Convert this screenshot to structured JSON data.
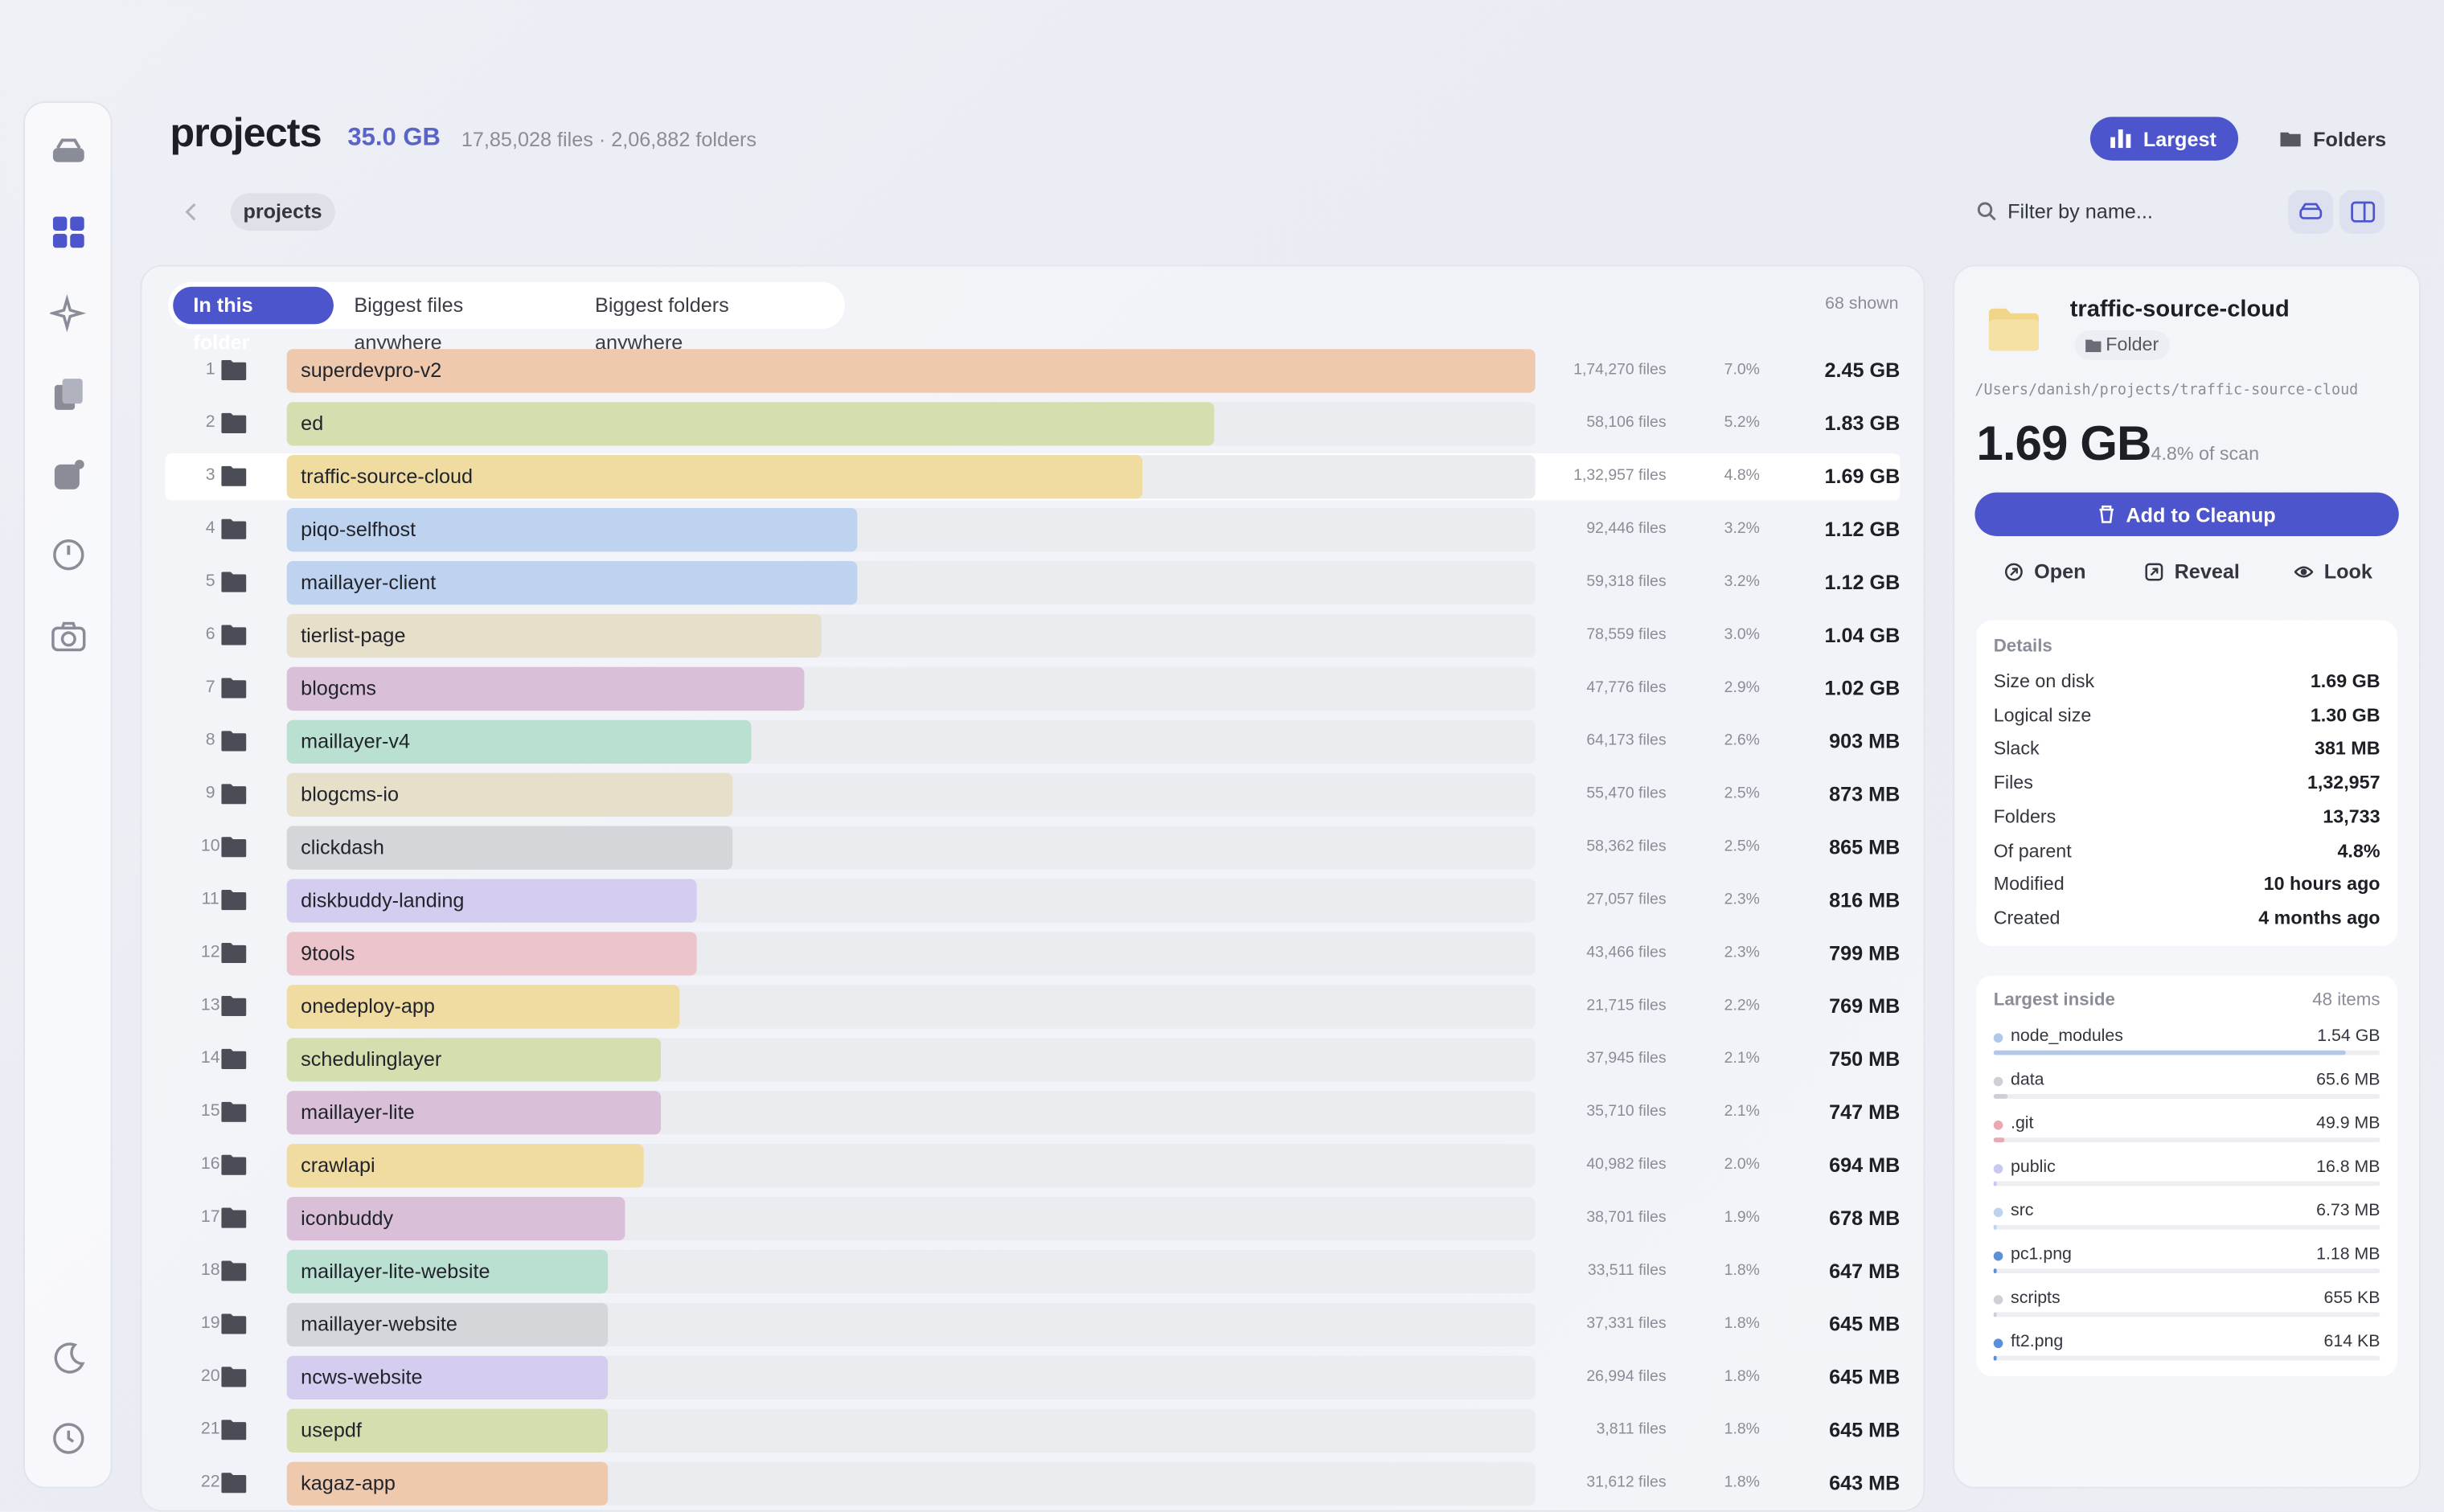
{
  "header": {
    "title": "projects",
    "size": "35.0 GB",
    "summary": "17,85,028 files · 2,06,882 folders"
  },
  "toolbar": {
    "view_buttons": [
      "Largest",
      "Folders"
    ],
    "active_view": 0,
    "breadcrumb": "projects",
    "filter_placeholder": "Filter by name..."
  },
  "list": {
    "tabs": [
      "In this folder",
      "Biggest files anywhere",
      "Biggest folders anywhere"
    ],
    "active_tab": 0,
    "shown": "68 shown",
    "selected": 2,
    "rows": [
      {
        "rank": 1,
        "name": "superdevpro-v2",
        "files": "1,74,270 files",
        "percent": "7.0%",
        "size": "2.45 GB",
        "color": "#efc9ad"
      },
      {
        "rank": 2,
        "name": "ed",
        "files": "58,106 files",
        "percent": "5.2%",
        "size": "1.83 GB",
        "color": "#d3dfae"
      },
      {
        "rank": 3,
        "name": "traffic-source-cloud",
        "files": "1,32,957 files",
        "percent": "4.8%",
        "size": "1.69 GB",
        "color": "#f0dba0"
      },
      {
        "rank": 4,
        "name": "piqo-selfhost",
        "files": "92,446 files",
        "percent": "3.2%",
        "size": "1.12 GB",
        "color": "#bed3f0"
      },
      {
        "rank": 5,
        "name": "maillayer-client",
        "files": "59,318 files",
        "percent": "3.2%",
        "size": "1.12 GB",
        "color": "#bed3f0"
      },
      {
        "rank": 6,
        "name": "tierlist-page",
        "files": "78,559 files",
        "percent": "3.0%",
        "size": "1.04 GB",
        "color": "#e6dfca"
      },
      {
        "rank": 7,
        "name": "blogcms",
        "files": "47,776 files",
        "percent": "2.9%",
        "size": "1.02 GB",
        "color": "#d9c0d8"
      },
      {
        "rank": 8,
        "name": "maillayer-v4",
        "files": "64,173 files",
        "percent": "2.6%",
        "size": "903 MB",
        "color": "#b9e0d0"
      },
      {
        "rank": 9,
        "name": "blogcms-io",
        "files": "55,470 files",
        "percent": "2.5%",
        "size": "873 MB",
        "color": "#e6dfca"
      },
      {
        "rank": 10,
        "name": "clickdash",
        "files": "58,362 files",
        "percent": "2.5%",
        "size": "865 MB",
        "color": "#d4d6da"
      },
      {
        "rank": 11,
        "name": "diskbuddy-landing",
        "files": "27,057 files",
        "percent": "2.3%",
        "size": "816 MB",
        "color": "#d5cdf0"
      },
      {
        "rank": 12,
        "name": "9tools",
        "files": "43,466 files",
        "percent": "2.3%",
        "size": "799 MB",
        "color": "#ecc5cc"
      },
      {
        "rank": 13,
        "name": "onedeploy-app",
        "files": "21,715 files",
        "percent": "2.2%",
        "size": "769 MB",
        "color": "#f0dba0"
      },
      {
        "rank": 14,
        "name": "schedulinglayer",
        "files": "37,945 files",
        "percent": "2.1%",
        "size": "750 MB",
        "color": "#d3dfae"
      },
      {
        "rank": 15,
        "name": "maillayer-lite",
        "files": "35,710 files",
        "percent": "2.1%",
        "size": "747 MB",
        "color": "#d9c0d8"
      },
      {
        "rank": 16,
        "name": "crawlapi",
        "files": "40,982 files",
        "percent": "2.0%",
        "size": "694 MB",
        "color": "#f0dba0"
      },
      {
        "rank": 17,
        "name": "iconbuddy",
        "files": "38,701 files",
        "percent": "1.9%",
        "size": "678 MB",
        "color": "#d9c0d8"
      },
      {
        "rank": 18,
        "name": "maillayer-lite-website",
        "files": "33,511 files",
        "percent": "1.8%",
        "size": "647 MB",
        "color": "#b9e0d0"
      },
      {
        "rank": 19,
        "name": "maillayer-website",
        "files": "37,331 files",
        "percent": "1.8%",
        "size": "645 MB",
        "color": "#d4d6da"
      },
      {
        "rank": 20,
        "name": "ncws-website",
        "files": "26,994 files",
        "percent": "1.8%",
        "size": "645 MB",
        "color": "#d5cdf0"
      },
      {
        "rank": 21,
        "name": "usepdf",
        "files": "3,811 files",
        "percent": "1.8%",
        "size": "645 MB",
        "color": "#d3dfae"
      },
      {
        "rank": 22,
        "name": "kagaz-app",
        "files": "31,612 files",
        "percent": "1.8%",
        "size": "643 MB",
        "color": "#efc9ad"
      }
    ]
  },
  "detail": {
    "name": "traffic-source-cloud",
    "kind": "Folder",
    "path": "/Users/danish/projects/traffic-source-cloud",
    "size": "1.69 GB",
    "scan_share": "4.8% of scan",
    "action": "Add to Cleanup",
    "links": [
      "Open",
      "Reveal",
      "Look"
    ],
    "details": {
      "title": "Details",
      "rows": [
        [
          "Size on disk",
          "1.69 GB"
        ],
        [
          "Logical size",
          "1.30 GB"
        ],
        [
          "Slack",
          "381 MB"
        ],
        [
          "Files",
          "1,32,957"
        ],
        [
          "Folders",
          "13,733"
        ],
        [
          "Of parent",
          "4.8%"
        ],
        [
          "Modified",
          "10 hours ago"
        ],
        [
          "Created",
          "4 months ago"
        ]
      ]
    },
    "largest_inside": {
      "title": "Largest inside",
      "count": "48 items",
      "items": [
        {
          "name": "node_modules",
          "size": "1.54 GB",
          "color": "#b3c8e8"
        },
        {
          "name": "data",
          "size": "65.6 MB",
          "color": "#cfd0d5"
        },
        {
          "name": ".git",
          "size": "49.9 MB",
          "color": "#e8a9b1"
        },
        {
          "name": "public",
          "size": "16.8 MB",
          "color": "#c9c8ef"
        },
        {
          "name": "src",
          "size": "6.73 MB",
          "color": "#bfd2ee"
        },
        {
          "name": "pc1.png",
          "size": "1.18 MB",
          "color": "#5b8fd8"
        },
        {
          "name": "scripts",
          "size": "655 KB",
          "color": "#cfd0d5"
        },
        {
          "name": "ft2.png",
          "size": "614 KB",
          "color": "#5b8fd8"
        }
      ]
    }
  }
}
